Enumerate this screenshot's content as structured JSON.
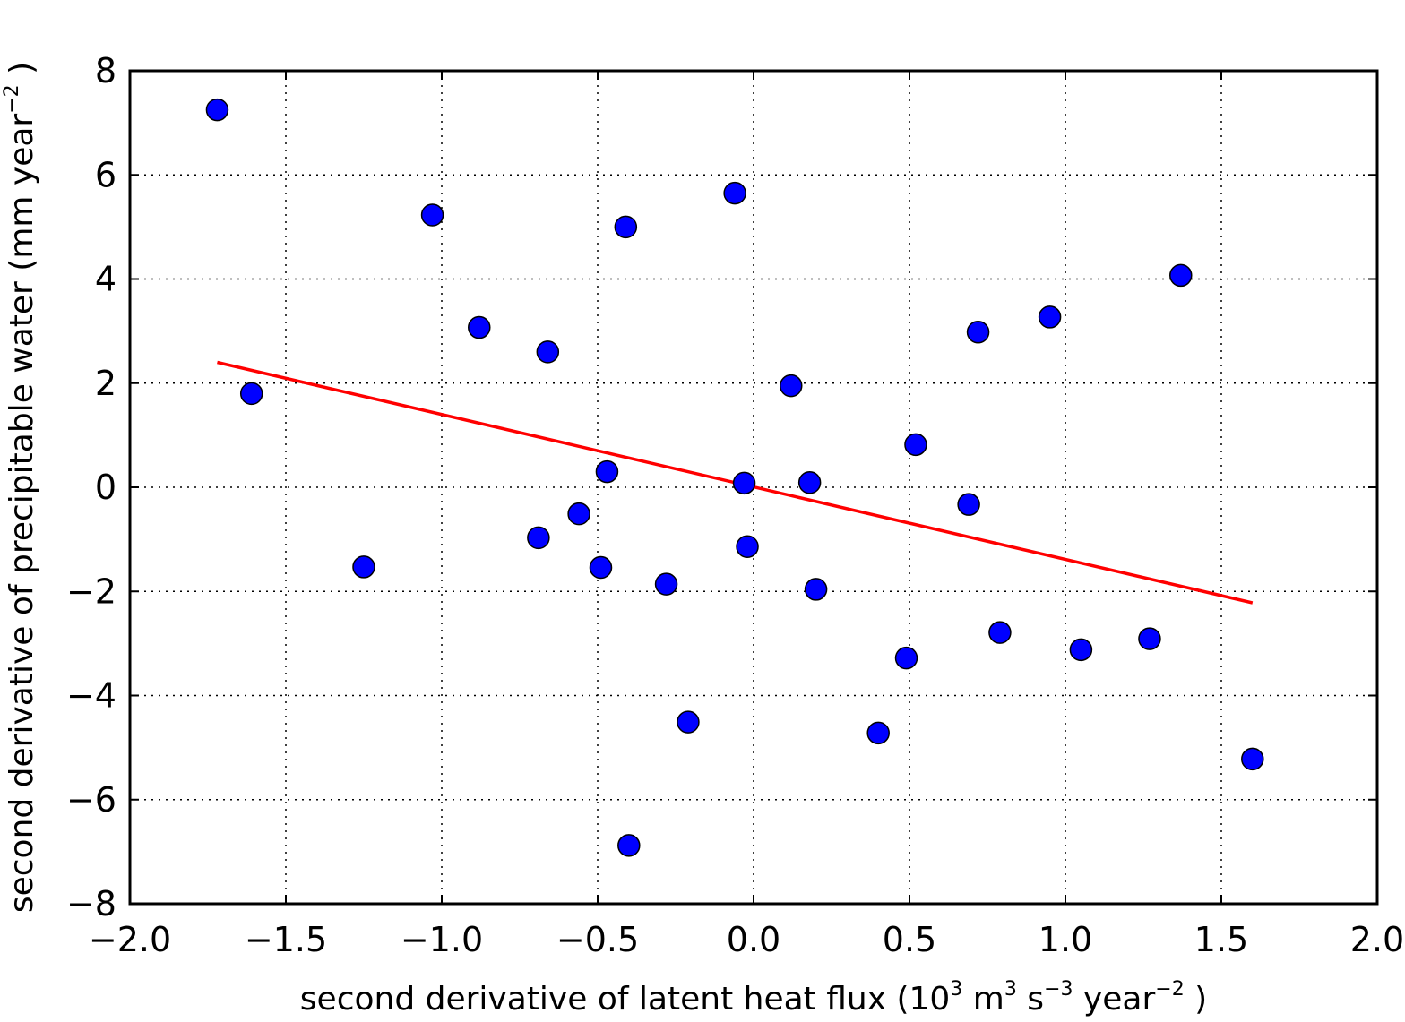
{
  "chart_data": {
    "type": "scatter",
    "title": "",
    "xlabel": {
      "parts": [
        {
          "t": "second derivative of latent heat flux (10"
        },
        {
          "t": "3",
          "sup": true
        },
        {
          "t": "  m"
        },
        {
          "t": "3",
          "sup": true
        },
        {
          "t": "  s"
        },
        {
          "t": "−3",
          "sup": true
        },
        {
          "t": "  year"
        },
        {
          "t": "−2",
          "sup": true
        },
        {
          "t": " )"
        }
      ]
    },
    "ylabel": {
      "parts": [
        {
          "t": "second derivative of precipitable water (mm year"
        },
        {
          "t": "−2",
          "sup": true
        },
        {
          "t": " )"
        }
      ]
    },
    "xlim": [
      -2.0,
      2.0
    ],
    "ylim": [
      -8,
      8
    ],
    "xticks": [
      -2.0,
      -1.5,
      -1.0,
      -0.5,
      0.0,
      0.5,
      1.0,
      1.5,
      2.0
    ],
    "xtick_labels": [
      "−2.0",
      "−1.5",
      "−1.0",
      "−0.5",
      "0.0",
      "0.5",
      "1.0",
      "1.5",
      "2.0"
    ],
    "yticks": [
      -8,
      -6,
      -4,
      -2,
      0,
      2,
      4,
      6,
      8
    ],
    "ytick_labels": [
      "−8",
      "−6",
      "−4",
      "−2",
      "0",
      "2",
      "4",
      "6",
      "8"
    ],
    "grid": true,
    "point_color": "#0000ff",
    "line_color": "#ff0000",
    "points": [
      {
        "x": -1.72,
        "y": 7.25
      },
      {
        "x": -1.61,
        "y": 1.8
      },
      {
        "x": -1.25,
        "y": -1.53
      },
      {
        "x": -1.03,
        "y": 5.23
      },
      {
        "x": -0.88,
        "y": 3.07
      },
      {
        "x": -0.69,
        "y": -0.97
      },
      {
        "x": -0.66,
        "y": 2.6
      },
      {
        "x": -0.56,
        "y": -0.51
      },
      {
        "x": -0.49,
        "y": -1.54
      },
      {
        "x": -0.47,
        "y": 0.3
      },
      {
        "x": -0.41,
        "y": 5.0
      },
      {
        "x": -0.4,
        "y": -6.88
      },
      {
        "x": -0.28,
        "y": -1.86
      },
      {
        "x": -0.21,
        "y": -4.51
      },
      {
        "x": -0.06,
        "y": 5.65
      },
      {
        "x": -0.03,
        "y": 0.08
      },
      {
        "x": -0.02,
        "y": -1.14
      },
      {
        "x": 0.12,
        "y": 1.95
      },
      {
        "x": 0.18,
        "y": 0.09
      },
      {
        "x": 0.2,
        "y": -1.96
      },
      {
        "x": 0.4,
        "y": -4.72
      },
      {
        "x": 0.49,
        "y": -3.28
      },
      {
        "x": 0.52,
        "y": 0.82
      },
      {
        "x": 0.69,
        "y": -0.33
      },
      {
        "x": 0.72,
        "y": 2.98
      },
      {
        "x": 0.79,
        "y": -2.79
      },
      {
        "x": 0.95,
        "y": 3.27
      },
      {
        "x": 1.05,
        "y": -3.12
      },
      {
        "x": 1.27,
        "y": -2.91
      },
      {
        "x": 1.37,
        "y": 4.07
      },
      {
        "x": 1.6,
        "y": -5.22
      }
    ],
    "fit_line": {
      "x": [
        -1.72,
        1.6
      ],
      "y": [
        2.4,
        -2.22
      ]
    }
  }
}
